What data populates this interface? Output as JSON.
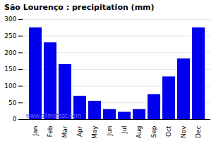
{
  "chart_data": {
    "type": "bar",
    "title": "São Lourenço : precipitation (mm)",
    "categories": [
      "Jan",
      "Feb",
      "Mar",
      "Apr",
      "May",
      "Jun",
      "Jul",
      "Aug",
      "Sep",
      "Oct",
      "Nov",
      "Dec"
    ],
    "values": [
      275,
      230,
      165,
      70,
      55,
      30,
      22,
      30,
      75,
      128,
      182,
      275
    ],
    "color": "#0000ee",
    "ylim": [
      0,
      300
    ],
    "yticks": [
      0,
      50,
      100,
      150,
      200,
      250,
      300
    ],
    "grid": true,
    "annotations": [
      "www.allmetsat.com"
    ]
  }
}
